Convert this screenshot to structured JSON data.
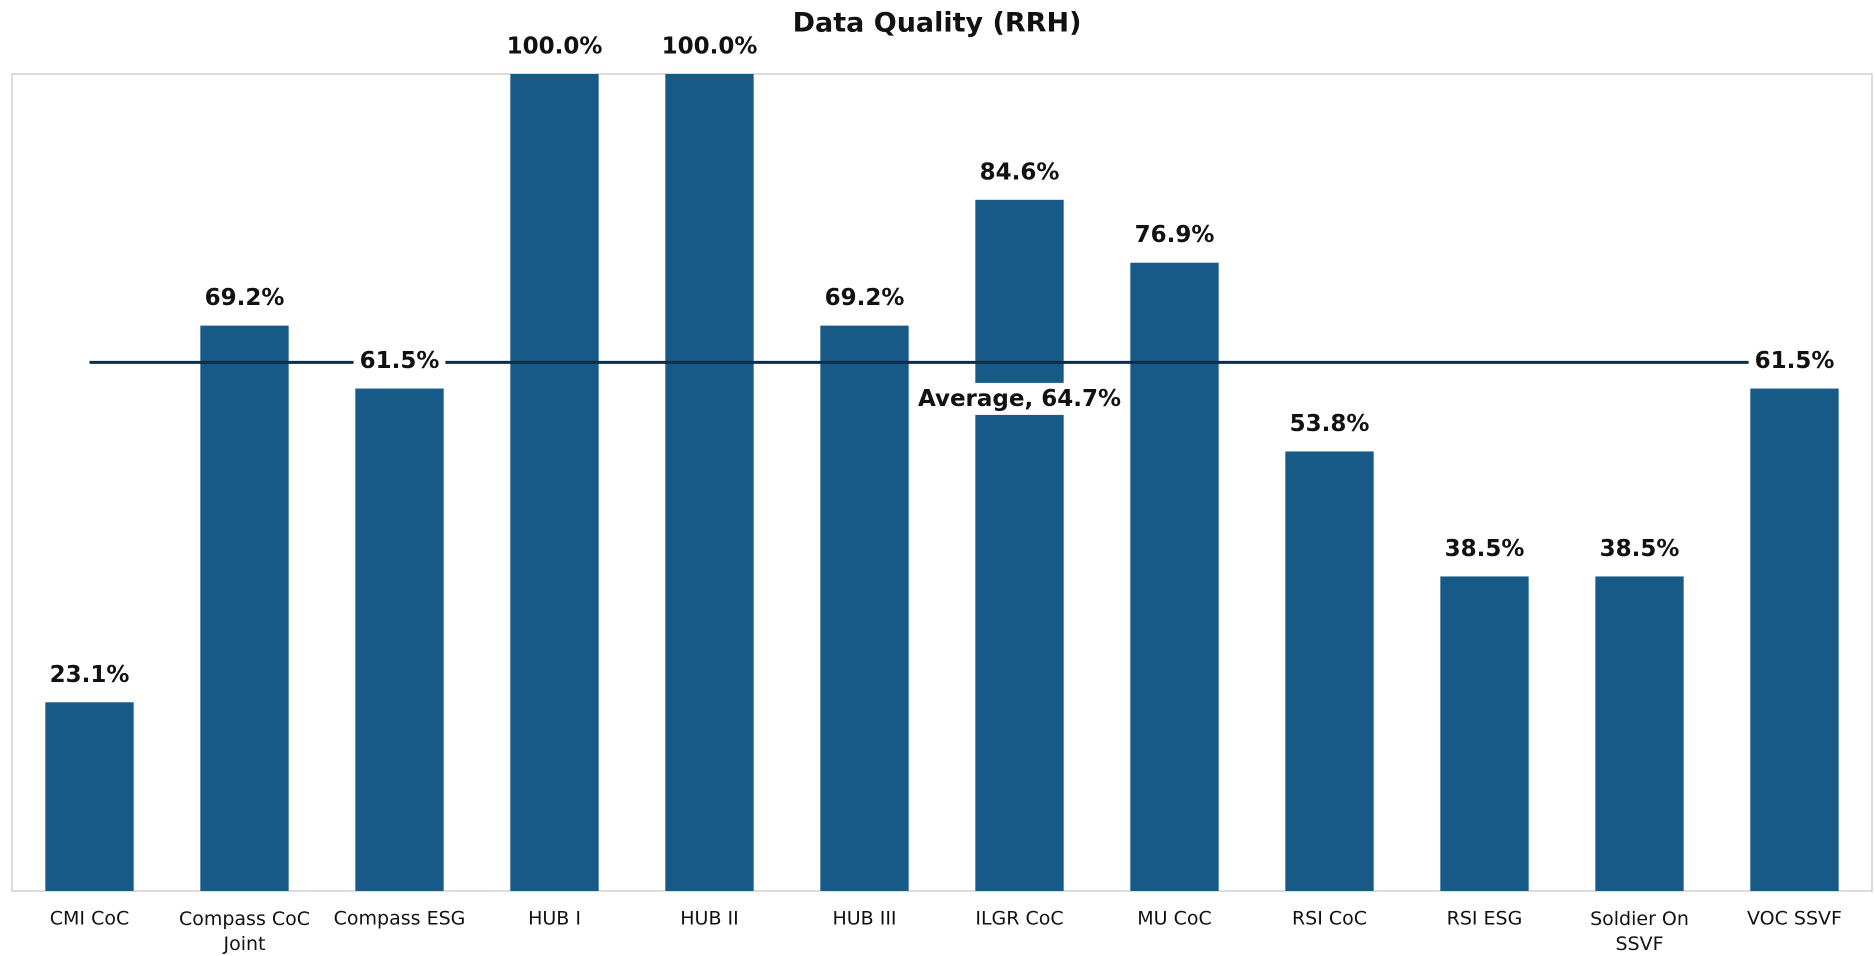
{
  "chart_data": {
    "type": "bar",
    "title": "Data Quality (RRH)",
    "categories": [
      "CMI CoC",
      "Compass CoC Joint",
      "Compass ESG",
      "HUB I",
      "HUB II",
      "HUB III",
      "ILGR CoC",
      "MU CoC",
      "RSI CoC",
      "RSI ESG",
      "Soldier On SSVF",
      "VOC SSVF"
    ],
    "values": [
      23.1,
      69.2,
      61.5,
      100.0,
      100.0,
      69.2,
      84.6,
      76.9,
      53.8,
      38.5,
      38.5,
      61.5
    ],
    "value_labels": [
      "23.1%",
      "69.2%",
      "61.5%",
      "100.0%",
      "100.0%",
      "69.2%",
      "84.6%",
      "76.9%",
      "53.8%",
      "38.5%",
      "38.5%",
      "61.5%"
    ],
    "color": "#175a88",
    "average": {
      "value": 64.7,
      "label": "Average, 64.7%",
      "color": "#0d2e4a"
    },
    "ylim": [
      0,
      100
    ]
  }
}
